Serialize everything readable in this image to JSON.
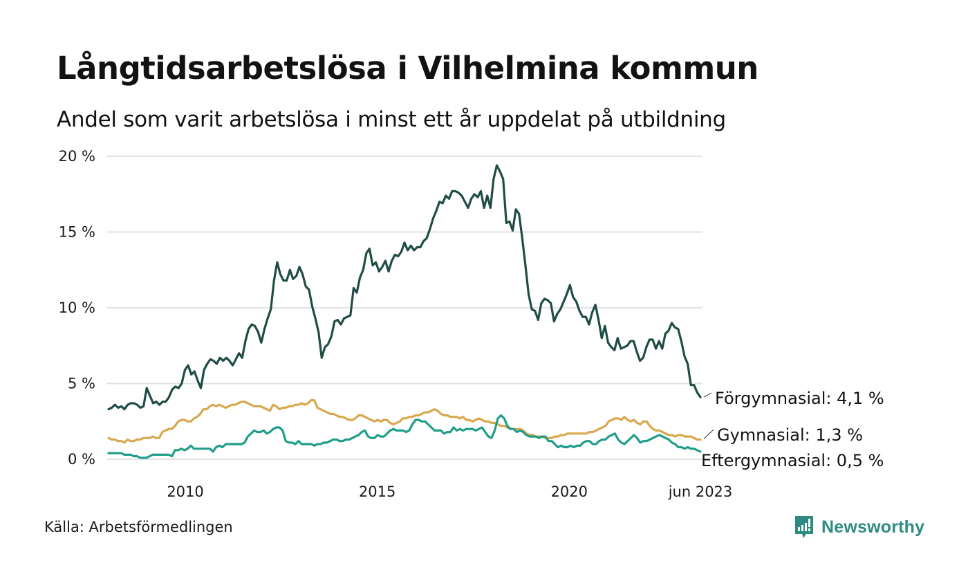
{
  "header": {
    "title": "Långtidsarbetslösa i Vilhelmina kommun",
    "subtitle": "Andel som varit arbetslösa i minst ett år uppdelat på utbildning"
  },
  "footer": {
    "source": "Källa: Arbetsförmedlingen",
    "brand": "Newsworthy",
    "brand_icon": "bar-chart-speech-bubble-icon",
    "brand_color": "#2e8b81"
  },
  "chart_data": {
    "type": "line",
    "title": "Långtidsarbetslösa i Vilhelmina kommun",
    "subtitle": "Andel som varit arbetslösa i minst ett år uppdelat på utbildning",
    "xlabel": "",
    "ylabel": "",
    "x_start": "2008-01",
    "x_end": "2023-06",
    "x_frequency": "monthly",
    "x_ticks": [
      {
        "label": "2010",
        "date": "2010-01"
      },
      {
        "label": "2015",
        "date": "2015-01"
      },
      {
        "label": "2020",
        "date": "2020-01"
      },
      {
        "label": "jun 2023",
        "date": "2023-06"
      }
    ],
    "y_ticks": [
      {
        "label": "0 %",
        "value": 0
      },
      {
        "label": "5 %",
        "value": 5
      },
      {
        "label": "10 %",
        "value": 10
      },
      {
        "label": "15 %",
        "value": 15
      },
      {
        "label": "20 %",
        "value": 20
      }
    ],
    "ylim": [
      0,
      20
    ],
    "grid": true,
    "legend": "direct-labels-right",
    "series": [
      {
        "name": "Förgymnasial",
        "end_label": "Förgymnasial: 4,1 %",
        "color": "#1f4d45",
        "values": [
          3.3,
          3.4,
          3.6,
          3.4,
          3.5,
          3.3,
          3.6,
          3.7,
          3.7,
          3.6,
          3.4,
          3.5,
          4.7,
          4.2,
          3.7,
          3.8,
          3.6,
          3.8,
          3.8,
          4.1,
          4.6,
          4.8,
          4.7,
          5.0,
          5.9,
          6.2,
          5.6,
          5.8,
          5.2,
          4.7,
          5.9,
          6.3,
          6.6,
          6.5,
          6.3,
          6.7,
          6.5,
          6.7,
          6.5,
          6.2,
          6.6,
          7.0,
          6.7,
          7.8,
          8.6,
          8.9,
          8.8,
          8.4,
          7.7,
          8.6,
          9.3,
          9.9,
          11.8,
          13.0,
          12.2,
          11.8,
          11.8,
          12.5,
          11.9,
          12.1,
          12.7,
          12.2,
          11.4,
          11.2,
          10.1,
          9.3,
          8.4,
          6.7,
          7.4,
          7.6,
          8.1,
          9.1,
          9.2,
          8.9,
          9.3,
          9.4,
          9.5,
          11.3,
          11.0,
          12.0,
          12.5,
          13.6,
          13.9,
          12.8,
          13.0,
          12.4,
          12.7,
          13.1,
          12.4,
          13.1,
          13.5,
          13.4,
          13.7,
          14.3,
          13.8,
          14.1,
          13.8,
          14.0,
          14.0,
          14.4,
          14.6,
          15.2,
          15.9,
          16.4,
          17.0,
          16.9,
          17.4,
          17.2,
          17.7,
          17.7,
          17.6,
          17.4,
          17.0,
          16.6,
          17.2,
          17.5,
          17.3,
          17.7,
          16.6,
          17.4,
          16.6,
          18.5,
          19.4,
          19.0,
          18.5,
          15.6,
          15.7,
          15.1,
          16.5,
          16.2,
          14.6,
          12.8,
          10.9,
          9.9,
          9.8,
          9.2,
          10.3,
          10.6,
          10.5,
          10.3,
          9.1,
          9.6,
          9.9,
          10.4,
          10.9,
          11.5,
          10.7,
          10.4,
          9.8,
          9.4,
          9.4,
          8.9,
          9.7,
          10.2,
          9.2,
          8.0,
          8.8,
          7.7,
          7.4,
          7.2,
          8.0,
          7.3,
          7.4,
          7.5,
          7.8,
          7.8,
          7.1,
          6.5,
          6.7,
          7.4,
          7.9,
          7.9,
          7.3,
          7.8,
          7.3,
          8.3,
          8.5,
          9.0,
          8.7,
          8.6,
          7.8,
          6.8,
          6.3,
          4.9,
          4.9,
          4.4,
          4.1
        ]
      },
      {
        "name": "Gymnasial",
        "end_label": "Gymnasial: 1,3 %",
        "color": "#d9a84e",
        "values": [
          1.4,
          1.3,
          1.3,
          1.2,
          1.2,
          1.1,
          1.3,
          1.2,
          1.2,
          1.3,
          1.3,
          1.4,
          1.4,
          1.4,
          1.5,
          1.4,
          1.4,
          1.8,
          1.9,
          2.0,
          2.0,
          2.2,
          2.5,
          2.6,
          2.6,
          2.5,
          2.5,
          2.7,
          2.8,
          3.0,
          3.3,
          3.3,
          3.5,
          3.6,
          3.5,
          3.6,
          3.5,
          3.4,
          3.5,
          3.6,
          3.6,
          3.7,
          3.8,
          3.8,
          3.7,
          3.6,
          3.5,
          3.5,
          3.5,
          3.4,
          3.3,
          3.2,
          3.6,
          3.5,
          3.3,
          3.4,
          3.4,
          3.5,
          3.5,
          3.6,
          3.6,
          3.7,
          3.6,
          3.7,
          3.9,
          3.9,
          3.4,
          3.3,
          3.2,
          3.1,
          3.0,
          3.0,
          2.9,
          2.8,
          2.8,
          2.7,
          2.6,
          2.6,
          2.7,
          2.9,
          2.9,
          2.8,
          2.7,
          2.6,
          2.5,
          2.6,
          2.5,
          2.6,
          2.6,
          2.4,
          2.3,
          2.4,
          2.5,
          2.7,
          2.7,
          2.8,
          2.8,
          2.9,
          2.9,
          3.0,
          3.1,
          3.1,
          3.2,
          3.3,
          3.2,
          3.0,
          2.9,
          2.9,
          2.8,
          2.8,
          2.8,
          2.7,
          2.8,
          2.6,
          2.6,
          2.5,
          2.6,
          2.7,
          2.6,
          2.5,
          2.5,
          2.4,
          2.4,
          2.3,
          2.2,
          2.2,
          2.1,
          2.0,
          2.0,
          2.0,
          2.0,
          1.9,
          1.7,
          1.6,
          1.6,
          1.5,
          1.5,
          1.5,
          1.4,
          1.4,
          1.4,
          1.5,
          1.5,
          1.6,
          1.6,
          1.7,
          1.7,
          1.7,
          1.7,
          1.7,
          1.7,
          1.7,
          1.8,
          1.8,
          1.9,
          2.0,
          2.1,
          2.2,
          2.5,
          2.6,
          2.7,
          2.7,
          2.6,
          2.8,
          2.6,
          2.5,
          2.6,
          2.4,
          2.3,
          2.5,
          2.5,
          2.2,
          2.0,
          1.9,
          1.9,
          1.8,
          1.7,
          1.6,
          1.6,
          1.5,
          1.6,
          1.6,
          1.5,
          1.5,
          1.5,
          1.4,
          1.3,
          1.3
        ]
      },
      {
        "name": "Eftergymnasial",
        "end_label": "Eftergymnasial: 0,5 %",
        "color": "#1f9e89",
        "values": [
          0.4,
          0.4,
          0.4,
          0.4,
          0.4,
          0.3,
          0.3,
          0.3,
          0.2,
          0.2,
          0.1,
          0.1,
          0.1,
          0.2,
          0.3,
          0.3,
          0.3,
          0.3,
          0.3,
          0.3,
          0.2,
          0.6,
          0.6,
          0.7,
          0.6,
          0.7,
          0.9,
          0.7,
          0.7,
          0.7,
          0.7,
          0.7,
          0.7,
          0.5,
          0.8,
          0.9,
          0.8,
          1.0,
          1.0,
          1.0,
          1.0,
          1.0,
          1.0,
          1.1,
          1.5,
          1.7,
          1.9,
          1.8,
          1.8,
          1.9,
          1.7,
          1.8,
          2.0,
          2.1,
          2.1,
          1.9,
          1.2,
          1.1,
          1.1,
          1.0,
          1.2,
          1.0,
          1.0,
          1.0,
          1.0,
          0.9,
          1.0,
          1.0,
          1.1,
          1.1,
          1.2,
          1.3,
          1.3,
          1.2,
          1.2,
          1.3,
          1.3,
          1.4,
          1.5,
          1.6,
          1.8,
          1.9,
          1.5,
          1.4,
          1.4,
          1.6,
          1.5,
          1.5,
          1.7,
          1.9,
          2.0,
          1.9,
          1.9,
          1.9,
          1.8,
          1.9,
          2.3,
          2.6,
          2.6,
          2.5,
          2.5,
          2.3,
          2.1,
          1.9,
          1.9,
          1.9,
          1.7,
          1.8,
          1.8,
          2.1,
          1.9,
          2.0,
          1.9,
          2.0,
          2.0,
          2.0,
          1.9,
          2.0,
          2.1,
          1.8,
          1.5,
          1.4,
          1.9,
          2.7,
          2.9,
          2.7,
          2.2,
          2.0,
          2.0,
          1.8,
          1.9,
          1.8,
          1.6,
          1.5,
          1.5,
          1.5,
          1.4,
          1.5,
          1.5,
          1.2,
          1.2,
          1.0,
          0.8,
          0.9,
          0.8,
          0.8,
          0.9,
          0.8,
          0.9,
          0.9,
          1.1,
          1.2,
          1.2,
          1.0,
          1.0,
          1.2,
          1.3,
          1.3,
          1.5,
          1.6,
          1.7,
          1.3,
          1.1,
          1.0,
          1.2,
          1.4,
          1.6,
          1.4,
          1.1,
          1.2,
          1.2,
          1.3,
          1.4,
          1.5,
          1.6,
          1.5,
          1.4,
          1.3,
          1.1,
          1.0,
          0.8,
          0.8,
          0.7,
          0.8,
          0.7,
          0.7,
          0.6,
          0.5
        ]
      }
    ]
  }
}
